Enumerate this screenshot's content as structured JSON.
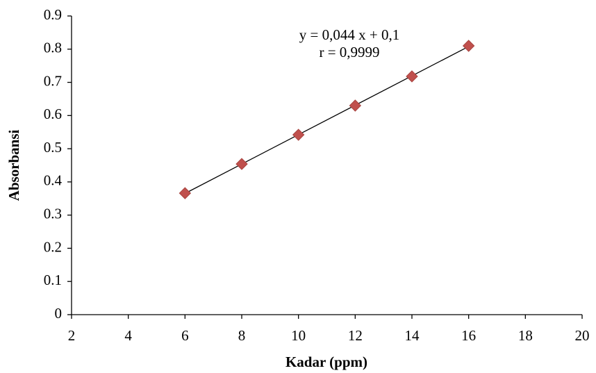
{
  "chart_data": {
    "type": "scatter",
    "x": [
      6,
      8,
      10,
      12,
      14,
      16
    ],
    "values": [
      0.366,
      0.454,
      0.542,
      0.63,
      0.718,
      0.81
    ],
    "color": "#c0504d",
    "xlabel": "Kadar (ppm)",
    "ylabel": "Absorbansi",
    "annotations": [
      "y = 0,044 x + 0,1",
      "r = 0,9999"
    ],
    "xlim": [
      2,
      20
    ],
    "xticks": [
      2,
      4,
      6,
      8,
      10,
      12,
      14,
      16,
      18,
      20
    ],
    "ylim": [
      0,
      0.9
    ],
    "yticks": [
      0,
      0.1,
      0.2,
      0.3,
      0.4,
      0.5,
      0.6,
      0.7,
      0.8,
      0.9
    ],
    "trendline": true
  }
}
